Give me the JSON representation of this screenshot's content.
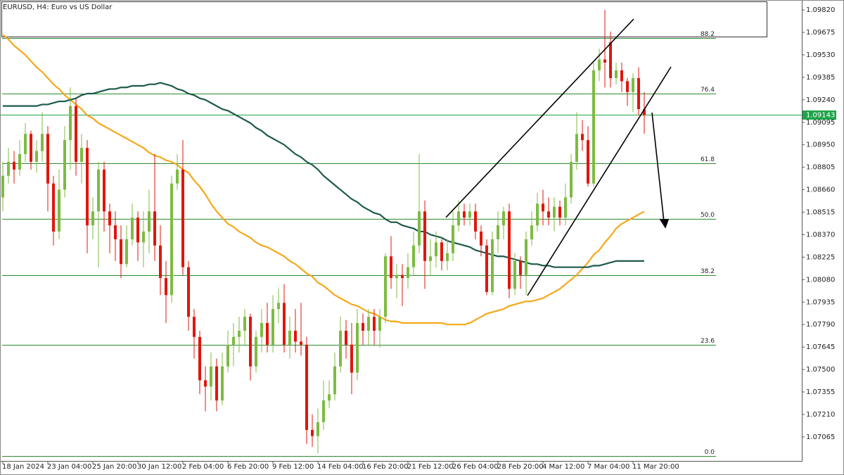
{
  "chart_data": {
    "type": "candlestick",
    "title": "EURUSD, H4:  Euro vs US Dollar",
    "categories": [
      "18 Jan 2024",
      null,
      null,
      null,
      null,
      null,
      null,
      null,
      "23 Jan 04:00",
      null,
      null,
      null,
      null,
      null,
      null,
      null,
      "25 Jan 20:00",
      null,
      null,
      null,
      null,
      null,
      null,
      null,
      "30 Jan 12:00",
      null,
      null,
      null,
      null,
      null,
      null,
      null,
      "2 Feb 04:00",
      null,
      null,
      null,
      null,
      null,
      null,
      null,
      "6 Feb 20:00",
      null,
      null,
      null,
      null,
      null,
      null,
      null,
      "9 Feb 12:00",
      null,
      null,
      null,
      null,
      null,
      null,
      null,
      "14 Feb 04:00",
      null,
      null,
      null,
      null,
      null,
      null,
      null,
      "16 Feb 20:00",
      null,
      null,
      null,
      null,
      null,
      null,
      null,
      "21 Feb 12:00",
      null,
      null,
      null,
      null,
      null,
      null,
      null,
      "26 Feb 04:00",
      null,
      null,
      null,
      null,
      null,
      null,
      null,
      "28 Feb 20:00",
      null,
      null,
      null,
      null,
      null,
      null,
      null,
      "4 Mar 12:00",
      null,
      null,
      null,
      null,
      null,
      null,
      null,
      "7 Mar 04:00",
      null,
      null,
      null,
      null,
      null,
      null,
      null,
      "11 Mar 20:00",
      null,
      null
    ],
    "open": [
      1.0861,
      1.0875,
      1.0884,
      1.0879,
      1.0889,
      1.0902,
      1.0884,
      1.0891,
      1.0902,
      1.087,
      1.0839,
      1.0866,
      1.0898,
      1.092,
      1.0884,
      1.0893,
      1.0843,
      1.0852,
      1.0879,
      1.0852,
      1.0843,
      1.0834,
      1.0818,
      1.0834,
      1.0848,
      1.0832,
      1.0839,
      1.0852,
      1.083,
      1.0809,
      1.0798,
      1.087,
      1.0879,
      1.0816,
      1.0784,
      1.0771,
      1.0743,
      1.0739,
      1.0752,
      1.073,
      1.0752,
      1.0766,
      1.0771,
      1.0775,
      1.0784,
      1.0752,
      1.0771,
      1.078,
      1.0766,
      1.0789,
      1.0793,
      1.0766,
      1.0775,
      1.0768,
      1.0766,
      1.0711,
      1.0707,
      1.0716,
      1.073,
      1.0734,
      1.0752,
      1.0775,
      1.0766,
      1.0748,
      1.078,
      1.0775,
      1.0784,
      1.0775,
      1.0784,
      1.0823,
      1.0809,
      1.0811,
      1.0809,
      1.0816,
      1.083,
      1.0852,
      1.082,
      1.0823,
      1.0832,
      1.082,
      1.0825,
      1.0843,
      1.0852,
      1.0848,
      1.0852,
      1.0839,
      1.083,
      1.08,
      1.0834,
      1.0843,
      1.0852,
      1.0802,
      1.082,
      1.0811,
      1.0834,
      1.0843,
      1.0857,
      1.0852,
      1.0848,
      1.0855,
      1.0848,
      1.0861,
      1.0884,
      1.0902,
      1.0898,
      1.087,
      1.0943,
      1.095,
      1.0961,
      1.0938,
      1.0943,
      1.0936,
      1.0929,
      1.0938,
      1.0918
    ],
    "high": [
      1.0884,
      1.0893,
      1.0891,
      1.0898,
      1.0909,
      1.0904,
      1.0898,
      1.0916,
      1.0907,
      1.0875,
      1.0879,
      1.0907,
      1.0932,
      1.0925,
      1.0902,
      1.0898,
      1.0861,
      1.0884,
      1.0884,
      1.0857,
      1.0852,
      1.0843,
      1.0843,
      1.0857,
      1.0852,
      1.0852,
      1.0866,
      1.0889,
      1.0843,
      1.082,
      1.0875,
      1.0889,
      1.0898,
      1.082,
      1.0789,
      1.0775,
      1.0752,
      1.0761,
      1.0757,
      1.0761,
      1.0775,
      1.078,
      1.0784,
      1.0789,
      1.0786,
      1.0775,
      1.0789,
      1.0793,
      1.0798,
      1.0802,
      1.0805,
      1.0784,
      1.0789,
      1.0793,
      1.0771,
      1.0721,
      1.0725,
      1.0743,
      1.0743,
      1.0761,
      1.0784,
      1.0782,
      1.078,
      1.0789,
      1.0786,
      1.0789,
      1.0789,
      1.0789,
      1.0825,
      1.0836,
      1.0818,
      1.0818,
      1.0825,
      1.0839,
      1.0889,
      1.0859,
      1.0834,
      1.0839,
      1.0834,
      1.0834,
      1.0852,
      1.0859,
      1.0857,
      1.0857,
      1.0857,
      1.0843,
      1.0834,
      1.0839,
      1.0852,
      1.0855,
      1.0857,
      1.0825,
      1.0823,
      1.0839,
      1.0852,
      1.0864,
      1.0866,
      1.0861,
      1.0861,
      1.0859,
      1.087,
      1.0889,
      1.0916,
      1.0911,
      1.0907,
      1.0948,
      1.0957,
      1.0982,
      1.0968,
      1.0948,
      1.0948,
      1.0938,
      1.0941,
      1.0945,
      1.0929
    ],
    "low": [
      1.0852,
      1.087,
      1.087,
      1.0875,
      1.0884,
      1.0879,
      1.0877,
      1.0884,
      1.0852,
      1.083,
      1.0834,
      1.0861,
      1.0879,
      1.0875,
      1.087,
      1.0825,
      1.0834,
      1.0816,
      1.0839,
      1.0825,
      1.082,
      1.0809,
      1.0816,
      1.083,
      1.082,
      1.0816,
      1.0825,
      1.082,
      1.0798,
      1.078,
      1.0793,
      1.0866,
      1.0811,
      1.0775,
      1.0757,
      1.0734,
      1.0723,
      1.073,
      1.0723,
      1.0727,
      1.0748,
      1.0752,
      1.0761,
      1.0766,
      1.0743,
      1.0748,
      1.0761,
      1.0761,
      1.0761,
      1.078,
      1.0761,
      1.0757,
      1.0761,
      1.0759,
      1.0702,
      1.07,
      1.0696,
      1.0711,
      1.0725,
      1.073,
      1.0748,
      1.0757,
      1.0734,
      1.0743,
      1.0766,
      1.0766,
      1.0766,
      1.0764,
      1.078,
      1.0802,
      1.0796,
      1.0791,
      1.0802,
      1.0811,
      1.0825,
      1.0802,
      1.0811,
      1.0816,
      1.0814,
      1.0814,
      1.082,
      1.0839,
      1.0843,
      1.0843,
      1.0834,
      1.0823,
      1.0798,
      1.0798,
      1.0825,
      1.0834,
      1.0796,
      1.0798,
      1.0802,
      1.0798,
      1.083,
      1.0839,
      1.0843,
      1.0843,
      1.0839,
      1.0843,
      1.0843,
      1.0857,
      1.0879,
      1.0891,
      1.0868,
      1.0868,
      1.0936,
      1.0932,
      1.0932,
      1.0934,
      1.0929,
      1.092,
      1.0916,
      1.0914,
      1.0902
    ],
    "close": [
      1.0875,
      1.0884,
      1.0879,
      1.0889,
      1.0902,
      1.0884,
      1.0891,
      1.0902,
      1.087,
      1.0839,
      1.0866,
      1.0898,
      1.092,
      1.0884,
      1.0893,
      1.0843,
      1.0852,
      1.0879,
      1.0852,
      1.0843,
      1.0834,
      1.0818,
      1.0834,
      1.0848,
      1.0832,
      1.0839,
      1.0852,
      1.083,
      1.0809,
      1.0798,
      1.087,
      1.0879,
      1.0816,
      1.0784,
      1.0771,
      1.0743,
      1.0739,
      1.0752,
      1.073,
      1.0752,
      1.0766,
      1.0771,
      1.0775,
      1.0784,
      1.0752,
      1.0771,
      1.078,
      1.0766,
      1.0789,
      1.0793,
      1.0766,
      1.0775,
      1.0768,
      1.0766,
      1.0711,
      1.0707,
      1.0716,
      1.073,
      1.0734,
      1.0752,
      1.0775,
      1.0766,
      1.0748,
      1.078,
      1.0775,
      1.0784,
      1.0775,
      1.0784,
      1.0823,
      1.0809,
      1.0811,
      1.0809,
      1.0816,
      1.083,
      1.0852,
      1.082,
      1.0823,
      1.0832,
      1.082,
      1.0825,
      1.0843,
      1.0852,
      1.0848,
      1.0852,
      1.0839,
      1.083,
      1.08,
      1.0834,
      1.0843,
      1.0852,
      1.0802,
      1.082,
      1.0811,
      1.0834,
      1.0843,
      1.0857,
      1.0852,
      1.0848,
      1.0855,
      1.0848,
      1.0861,
      1.0884,
      1.0902,
      1.0898,
      1.087,
      1.0943,
      1.095,
      1.0948,
      1.0938,
      1.0943,
      1.0936,
      1.0929,
      1.0938,
      1.0918,
      1.0914
    ],
    "up_color": "#7dbb42",
    "down_color": "#e0160c",
    "moving_averages": [
      {
        "color": "#f5a819",
        "values": [
          1.0966,
          1.0963,
          1.0959,
          1.0956,
          1.0953,
          1.0949,
          1.0945,
          1.0942,
          1.0938,
          1.0934,
          1.0931,
          1.0927,
          1.0924,
          1.0921,
          1.0918,
          1.0914,
          1.0912,
          1.0909,
          1.0907,
          1.0905,
          1.0903,
          1.0901,
          1.0899,
          1.0897,
          1.0895,
          1.0893,
          1.089,
          1.0888,
          1.0887,
          1.0885,
          1.0884,
          1.0882,
          1.0879,
          1.0877,
          1.0872,
          1.0868,
          1.0863,
          1.0857,
          1.0852,
          1.0848,
          1.0844,
          1.0842,
          1.0839,
          1.0837,
          1.0835,
          1.0832,
          1.083,
          1.0829,
          1.0827,
          1.0825,
          1.0823,
          1.082,
          1.0818,
          1.0815,
          1.0812,
          1.081,
          1.0806,
          1.0804,
          1.0801,
          1.0798,
          1.0796,
          1.0794,
          1.0792,
          1.0791,
          1.0789,
          1.0787,
          1.0786,
          1.0784,
          1.0782,
          1.0781,
          1.0781,
          1.078,
          1.078,
          1.078,
          1.078,
          1.078,
          1.078,
          1.078,
          1.078,
          1.0779,
          1.0779,
          1.0779,
          1.0779,
          1.078,
          1.0782,
          1.0784,
          1.0786,
          1.0787,
          1.0788,
          1.0789,
          1.0791,
          1.0792,
          1.0793,
          1.0794,
          1.0794,
          1.0795,
          1.0796,
          1.0798,
          1.08,
          1.0802,
          1.0805,
          1.0808,
          1.0811,
          1.0815,
          1.0819,
          1.0824,
          1.0827,
          1.0832,
          1.0836,
          1.0841,
          1.0844,
          1.0846,
          1.0848,
          1.085,
          1.0852
        ]
      },
      {
        "color": "#1d5a4c",
        "values": [
          1.092,
          1.092,
          1.092,
          1.092,
          1.092,
          1.092,
          1.092,
          1.0921,
          1.0921,
          1.0922,
          1.0923,
          1.0923,
          1.0924,
          1.0925,
          1.0927,
          1.0928,
          1.0928,
          1.0929,
          1.093,
          1.0931,
          1.0931,
          1.0932,
          1.0932,
          1.0933,
          1.0933,
          1.0933,
          1.0934,
          1.0934,
          1.0935,
          1.0934,
          1.0933,
          1.0931,
          1.093,
          1.0928,
          1.0927,
          1.0925,
          1.0924,
          1.0922,
          1.092,
          1.0918,
          1.0917,
          1.0915,
          1.0913,
          1.0911,
          1.0909,
          1.0906,
          1.0904,
          1.0901,
          1.0899,
          1.0897,
          1.0895,
          1.0892,
          1.0889,
          1.0887,
          1.0884,
          1.0882,
          1.0879,
          1.0875,
          1.0872,
          1.0869,
          1.0866,
          1.0863,
          1.086,
          1.0858,
          1.0855,
          1.0853,
          1.0851,
          1.085,
          1.0847,
          1.0845,
          1.0845,
          1.0843,
          1.0842,
          1.0841,
          1.0839,
          1.0839,
          1.0837,
          1.0836,
          1.0835,
          1.0833,
          1.0832,
          1.0831,
          1.083,
          1.0829,
          1.0827,
          1.0826,
          1.0825,
          1.0824,
          1.0823,
          1.0823,
          1.0822,
          1.0821,
          1.082,
          1.0819,
          1.0818,
          1.0818,
          1.0817,
          1.0817,
          1.0816,
          1.0816,
          1.0816,
          1.0816,
          1.0816,
          1.0816,
          1.0816,
          1.0817,
          1.0817,
          1.0818,
          1.0819,
          1.082,
          1.082,
          1.082,
          1.082,
          1.082,
          1.082
        ]
      }
    ],
    "fib_color": "#2f8a2f",
    "fib_levels": [
      {
        "label": "88.2",
        "price": 1.0964
      },
      {
        "label": "76.4",
        "price": 1.0928
      },
      {
        "label": "61.8",
        "price": 1.0883
      },
      {
        "label": "50.0",
        "price": 1.0847
      },
      {
        "label": "38.2",
        "price": 1.0811
      },
      {
        "label": "23.6",
        "price": 1.0766
      },
      {
        "label": "0.0",
        "price": 1.0694
      }
    ],
    "last_price": 1.09143,
    "last_price_color": "#1fa34a",
    "ylim": [
      1.0691,
      1.09884
    ],
    "yticks": [
      {
        "value": 1.0982,
        "label": "1.09820"
      },
      1.09675,
      {
        "value": 1.0953,
        "label": "1.09530"
      },
      1.09385,
      {
        "value": 1.0924,
        "label": "1.09240"
      },
      1.09095,
      {
        "value": 1.0895,
        "label": "1.08950"
      },
      1.08805,
      {
        "value": 1.0866,
        "label": "1.08660"
      },
      1.08515,
      {
        "value": 1.0837,
        "label": "1.08370"
      },
      1.08225,
      {
        "value": 1.0808,
        "label": "1.08080"
      },
      1.07935,
      {
        "value": 1.0779,
        "label": "1.07790"
      },
      1.07645,
      {
        "value": 1.075,
        "label": "1.07500"
      },
      1.07355,
      {
        "value": 1.0721,
        "label": "1.07210"
      },
      1.07065
    ]
  }
}
